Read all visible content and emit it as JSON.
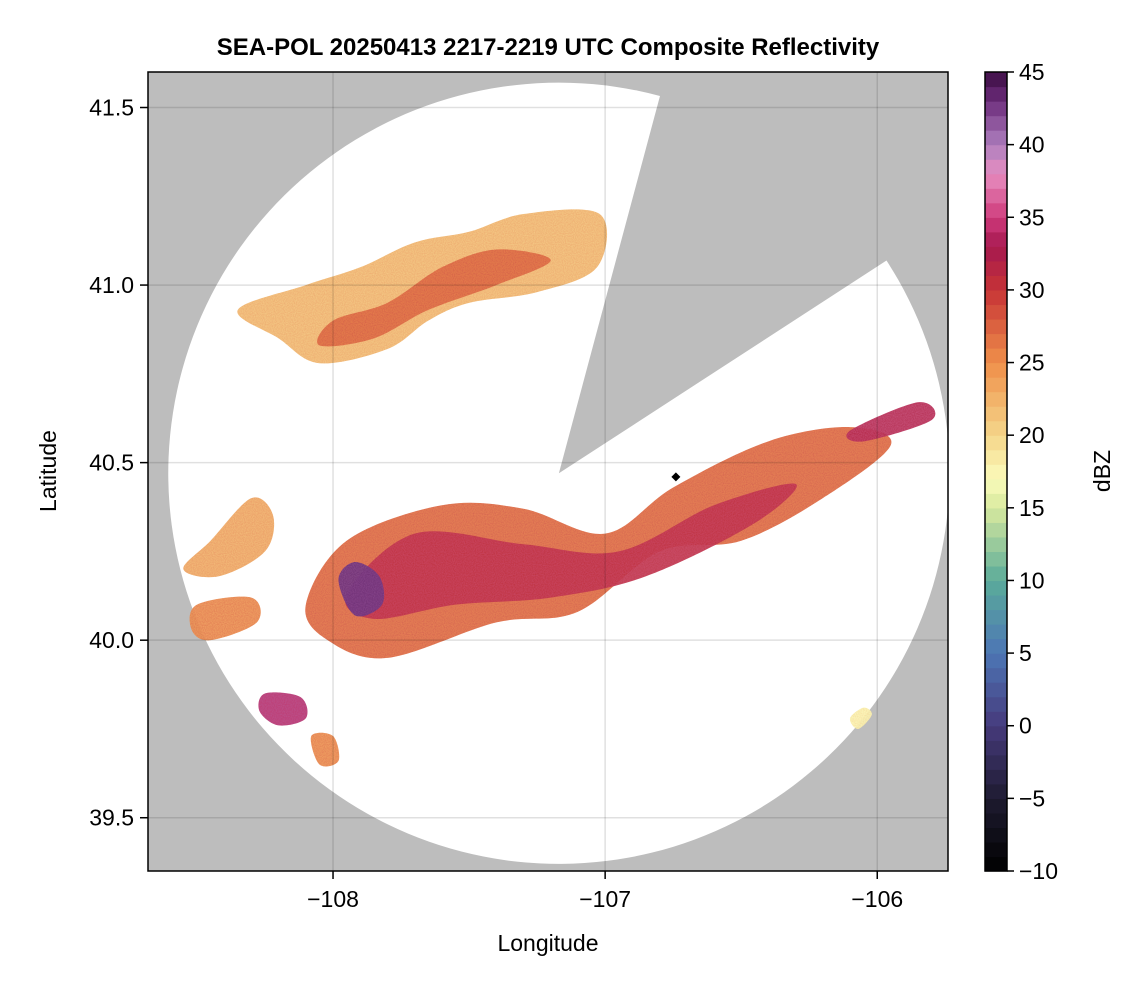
{
  "title": "SEA-POL 20250413 2217-2219 UTC Composite Reflectivity",
  "map": {
    "xlabel": "Longitude",
    "ylabel": "Latitude",
    "xlim": [
      -108.68,
      -105.74
    ],
    "ylim": [
      39.35,
      41.6
    ],
    "x_ticks": [
      {
        "value": -108,
        "label": "−108"
      },
      {
        "value": -107,
        "label": "−107"
      },
      {
        "value": -106,
        "label": "−106"
      }
    ],
    "y_ticks": [
      {
        "value": 39.5,
        "label": "39.5"
      },
      {
        "value": 40.0,
        "label": "40.0"
      },
      {
        "value": 40.5,
        "label": "40.5"
      },
      {
        "value": 41.0,
        "label": "41.0"
      },
      {
        "value": 41.5,
        "label": "41.5"
      }
    ],
    "grid": true,
    "background_color": "#bdbdbd",
    "coverage_color": "#ffffff",
    "radar_center": {
      "lon": -107.17,
      "lat": 40.47
    },
    "radar_range_deg_lat": 1.1,
    "blocked_sector_bearings_deg": [
      15,
      57
    ],
    "site_marker": {
      "lon": -106.74,
      "lat": 40.46,
      "symbol": "diamond",
      "color": "#000000"
    },
    "echo_regions": [
      {
        "region": "main band",
        "points": [
          [
            -108.02,
            40.0
          ],
          [
            -108.1,
            40.1
          ],
          [
            -107.95,
            40.28
          ],
          [
            -107.6,
            40.38
          ],
          [
            -107.3,
            40.37
          ],
          [
            -107.0,
            40.3
          ],
          [
            -106.75,
            40.43
          ],
          [
            -106.4,
            40.56
          ],
          [
            -106.1,
            40.6
          ],
          [
            -105.95,
            40.55
          ],
          [
            -106.2,
            40.4
          ],
          [
            -106.5,
            40.28
          ],
          [
            -106.8,
            40.25
          ],
          [
            -107.1,
            40.08
          ],
          [
            -107.4,
            40.05
          ],
          [
            -107.8,
            39.95
          ]
        ],
        "dbz": 26
      },
      {
        "region": "main band core",
        "points": [
          [
            -107.95,
            40.13
          ],
          [
            -107.7,
            40.3
          ],
          [
            -107.3,
            40.27
          ],
          [
            -106.95,
            40.25
          ],
          [
            -106.6,
            40.38
          ],
          [
            -106.3,
            40.44
          ],
          [
            -106.45,
            40.33
          ],
          [
            -106.85,
            40.18
          ],
          [
            -107.2,
            40.12
          ],
          [
            -107.55,
            40.1
          ],
          [
            -107.85,
            40.06
          ]
        ],
        "dbz": 31
      },
      {
        "region": "main band peak",
        "points": [
          [
            -107.98,
            40.17
          ],
          [
            -107.92,
            40.22
          ],
          [
            -107.83,
            40.18
          ],
          [
            -107.82,
            40.1
          ],
          [
            -107.92,
            40.07
          ]
        ],
        "dbz": 42
      },
      {
        "region": "northern band",
        "points": [
          [
            -108.35,
            40.93
          ],
          [
            -108.1,
            41.0
          ],
          [
            -107.9,
            41.05
          ],
          [
            -107.7,
            41.12
          ],
          [
            -107.5,
            41.15
          ],
          [
            -107.3,
            41.2
          ],
          [
            -107.02,
            41.2
          ],
          [
            -107.03,
            41.05
          ],
          [
            -107.25,
            40.98
          ],
          [
            -107.5,
            40.95
          ],
          [
            -107.65,
            40.9
          ],
          [
            -107.8,
            40.82
          ],
          [
            -108.05,
            40.78
          ],
          [
            -108.2,
            40.85
          ]
        ],
        "dbz": 21
      },
      {
        "region": "northern band core",
        "points": [
          [
            -108.0,
            40.9
          ],
          [
            -107.8,
            40.95
          ],
          [
            -107.6,
            41.05
          ],
          [
            -107.4,
            41.1
          ],
          [
            -107.2,
            41.07
          ],
          [
            -107.4,
            41.0
          ],
          [
            -107.65,
            40.93
          ],
          [
            -107.85,
            40.85
          ],
          [
            -108.05,
            40.83
          ]
        ],
        "dbz": 26
      },
      {
        "region": "western cell",
        "points": [
          [
            -108.45,
            40.28
          ],
          [
            -108.3,
            40.4
          ],
          [
            -108.22,
            40.35
          ],
          [
            -108.25,
            40.25
          ],
          [
            -108.42,
            40.18
          ],
          [
            -108.55,
            40.2
          ]
        ],
        "dbz": 22
      },
      {
        "region": "southwestern cell",
        "points": [
          [
            -108.5,
            40.1
          ],
          [
            -108.3,
            40.12
          ],
          [
            -108.28,
            40.05
          ],
          [
            -108.45,
            40.0
          ],
          [
            -108.52,
            40.03
          ]
        ],
        "dbz": 24
      },
      {
        "region": "southern cell",
        "points": [
          [
            -108.25,
            39.85
          ],
          [
            -108.12,
            39.84
          ],
          [
            -108.1,
            39.78
          ],
          [
            -108.2,
            39.76
          ],
          [
            -108.27,
            39.8
          ]
        ],
        "dbz": 34
      },
      {
        "region": "far southern cell",
        "points": [
          [
            -108.08,
            39.73
          ],
          [
            -108.0,
            39.73
          ],
          [
            -107.98,
            39.66
          ],
          [
            -108.05,
            39.65
          ]
        ],
        "dbz": 24
      },
      {
        "region": "northeastern cell",
        "points": [
          [
            -106.1,
            40.59
          ],
          [
            -105.85,
            40.67
          ],
          [
            -105.8,
            40.62
          ],
          [
            -106.05,
            40.56
          ]
        ],
        "dbz": 32
      },
      {
        "region": "southeastern fleck",
        "points": [
          [
            -106.1,
            39.78
          ],
          [
            -106.05,
            39.81
          ],
          [
            -106.02,
            39.79
          ],
          [
            -106.07,
            39.75
          ]
        ],
        "dbz": 17
      }
    ]
  },
  "colorbar": {
    "label": "dBZ",
    "min": -10,
    "max": 45,
    "ticks": [
      {
        "value": -10,
        "label": "−10"
      },
      {
        "value": -5,
        "label": "−5"
      },
      {
        "value": 0,
        "label": "0"
      },
      {
        "value": 5,
        "label": "5"
      },
      {
        "value": 10,
        "label": "10"
      },
      {
        "value": 15,
        "label": "15"
      },
      {
        "value": 20,
        "label": "20"
      },
      {
        "value": 25,
        "label": "25"
      },
      {
        "value": 30,
        "label": "30"
      },
      {
        "value": 35,
        "label": "35"
      },
      {
        "value": 40,
        "label": "40"
      },
      {
        "value": 45,
        "label": "45"
      }
    ],
    "stops": [
      {
        "value": -10,
        "color": "#000000"
      },
      {
        "value": -5,
        "color": "#1e1b30"
      },
      {
        "value": 0,
        "color": "#463a7c"
      },
      {
        "value": 5,
        "color": "#4d76b5"
      },
      {
        "value": 10,
        "color": "#5aab9a"
      },
      {
        "value": 15,
        "color": "#d7e99e"
      },
      {
        "value": 17,
        "color": "#fbfbbb"
      },
      {
        "value": 20,
        "color": "#f5d68a"
      },
      {
        "value": 25,
        "color": "#ef8f4a"
      },
      {
        "value": 30,
        "color": "#c73436"
      },
      {
        "value": 33,
        "color": "#a5184f"
      },
      {
        "value": 35,
        "color": "#cf3b7c"
      },
      {
        "value": 38,
        "color": "#e78ec0"
      },
      {
        "value": 40,
        "color": "#ae7fbe"
      },
      {
        "value": 43,
        "color": "#6d2d7c"
      },
      {
        "value": 45,
        "color": "#3b0d42"
      }
    ]
  }
}
